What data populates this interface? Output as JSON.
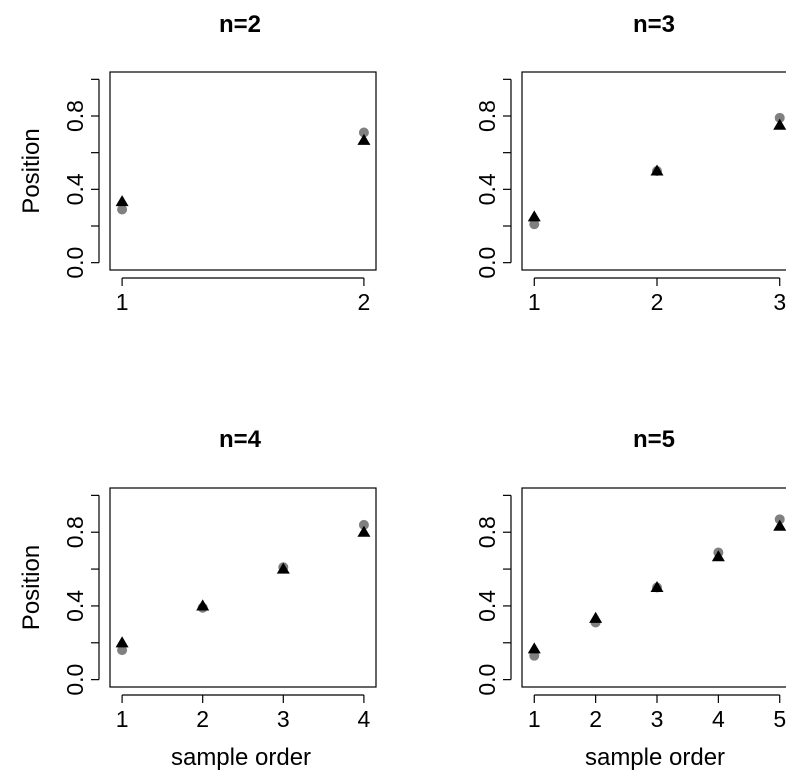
{
  "chart_data": [
    {
      "type": "scatter",
      "title": "n=2",
      "xlabel": "",
      "ylabel": "Position",
      "xlim": [
        0.95,
        2.05
      ],
      "ylim": [
        -0.04,
        1.04
      ],
      "x_ticks": [
        "1",
        "2"
      ],
      "y_ticks": [
        "0.0",
        "0.4",
        "0.8"
      ],
      "series": [
        {
          "marker": "circle",
          "color": "#808080",
          "x": [
            1,
            2
          ],
          "values": [
            0.29,
            0.71
          ]
        },
        {
          "marker": "triangle",
          "color": "#000000",
          "x": [
            1,
            2
          ],
          "values": [
            0.333,
            0.667
          ]
        }
      ]
    },
    {
      "type": "scatter",
      "title": "n=3",
      "xlabel": "",
      "ylabel": "",
      "xlim": [
        0.9,
        3.1
      ],
      "ylim": [
        -0.04,
        1.04
      ],
      "x_ticks": [
        "1",
        "2",
        "3"
      ],
      "y_ticks": [
        "0.0",
        "0.4",
        "0.8"
      ],
      "series": [
        {
          "marker": "circle",
          "color": "#808080",
          "x": [
            1,
            2,
            3
          ],
          "values": [
            0.21,
            0.5,
            0.79
          ]
        },
        {
          "marker": "triangle",
          "color": "#000000",
          "x": [
            1,
            2,
            3
          ],
          "values": [
            0.25,
            0.5,
            0.75
          ]
        }
      ]
    },
    {
      "type": "scatter",
      "title": "n=4",
      "xlabel": "sample order",
      "ylabel": "Position",
      "xlim": [
        0.85,
        4.15
      ],
      "ylim": [
        -0.04,
        1.04
      ],
      "x_ticks": [
        "1",
        "2",
        "3",
        "4"
      ],
      "y_ticks": [
        "0.0",
        "0.4",
        "0.8"
      ],
      "series": [
        {
          "marker": "circle",
          "color": "#808080",
          "x": [
            1,
            2,
            3,
            4
          ],
          "values": [
            0.16,
            0.39,
            0.61,
            0.84
          ]
        },
        {
          "marker": "triangle",
          "color": "#000000",
          "x": [
            1,
            2,
            3,
            4
          ],
          "values": [
            0.2,
            0.4,
            0.6,
            0.8
          ]
        }
      ]
    },
    {
      "type": "scatter",
      "title": "n=5",
      "xlabel": "sample order",
      "ylabel": "",
      "xlim": [
        0.8,
        5.2
      ],
      "ylim": [
        -0.04,
        1.04
      ],
      "x_ticks": [
        "1",
        "2",
        "3",
        "4",
        "5"
      ],
      "y_ticks": [
        "0.0",
        "0.4",
        "0.8"
      ],
      "series": [
        {
          "marker": "circle",
          "color": "#808080",
          "x": [
            1,
            2,
            3,
            4,
            5
          ],
          "values": [
            0.13,
            0.31,
            0.5,
            0.69,
            0.87
          ]
        },
        {
          "marker": "triangle",
          "color": "#000000",
          "x": [
            1,
            2,
            3,
            4,
            5
          ],
          "values": [
            0.167,
            0.333,
            0.5,
            0.667,
            0.833
          ]
        }
      ]
    }
  ]
}
